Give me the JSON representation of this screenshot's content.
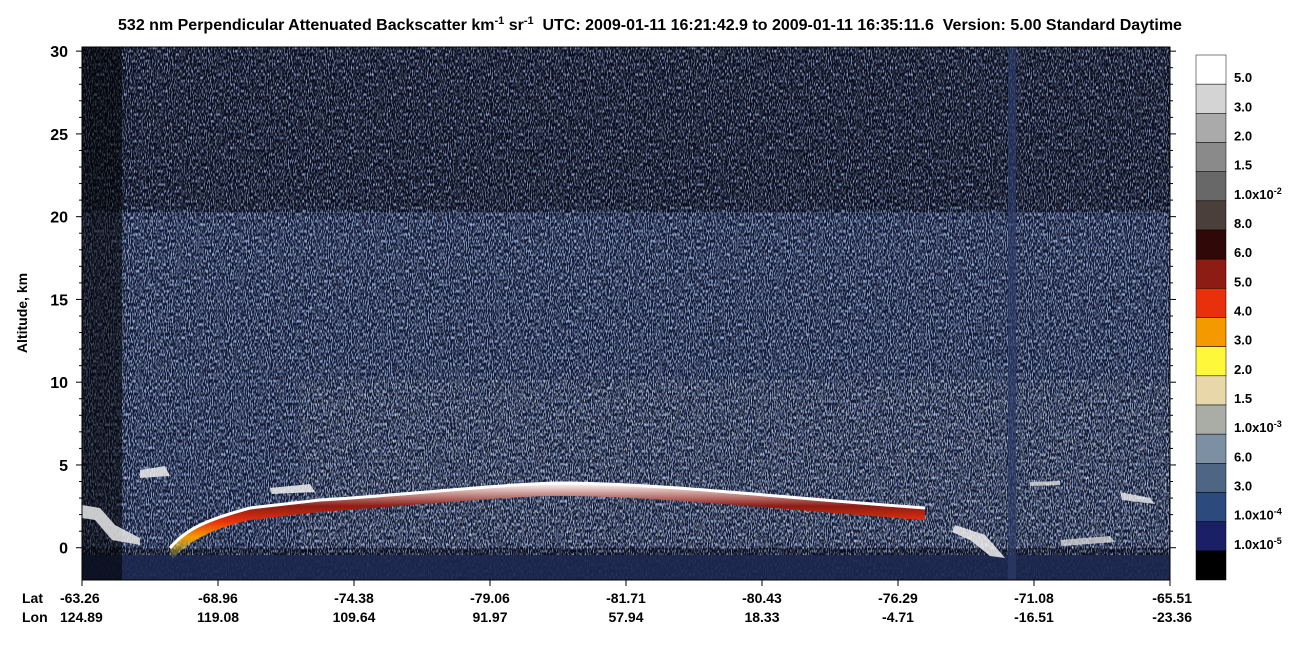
{
  "chart_data": {
    "type": "heatmap",
    "title": [
      {
        "text": "532 nm Perpendicular Attenuated Backscatter km"
      },
      {
        "sup": "-1"
      },
      {
        "text": " sr"
      },
      {
        "sup": "-1"
      },
      {
        "text": "  UTC: 2009-01-11 16:21:42.9 to 2009-01-11 16:35:11.6  Version: 5.00 Standard Daytime"
      }
    ],
    "y_label": "Altitude, km",
    "ylim": [
      -1.95,
      30.25
    ],
    "yticks": [
      0,
      5,
      10,
      15,
      20,
      25,
      30
    ],
    "x_rows": [
      {
        "name": "Lat",
        "values": [
          -63.26,
          -68.96,
          -74.38,
          -79.06,
          -81.71,
          -80.43,
          -76.29,
          -71.08,
          -65.51
        ]
      },
      {
        "name": "Lon",
        "values": [
          124.89,
          119.08,
          109.64,
          91.97,
          57.94,
          18.33,
          -4.71,
          -16.51,
          -23.36
        ]
      }
    ],
    "colorbar": {
      "colors": [
        "#ffffff",
        "#d4d4d4",
        "#aaaaaa",
        "#8a8a8a",
        "#686868",
        "#4a3f3a",
        "#300808",
        "#8c1c14",
        "#e8300c",
        "#f49a00",
        "#fdf83a",
        "#e8d7a8",
        "#a9ada5",
        "#7d8fa2",
        "#4e6584",
        "#2c4a7c",
        "#1b1f66",
        "#000000"
      ],
      "labels": [
        {
          "text": "5.0"
        },
        {
          "text": "3.0"
        },
        {
          "text": "2.0"
        },
        {
          "text": "1.5"
        },
        {
          "text": "1.0x10",
          "sup": "-2"
        },
        {
          "text": "8.0"
        },
        {
          "text": "6.0"
        },
        {
          "text": "5.0"
        },
        {
          "text": "4.0"
        },
        {
          "text": "3.0"
        },
        {
          "text": "2.0"
        },
        {
          "text": "1.5"
        },
        {
          "text": "1.0x10",
          "sup": "-3"
        },
        {
          "text": "6.0"
        },
        {
          "text": "3.0"
        },
        {
          "text": "1.0x10",
          "sup": "-4"
        },
        {
          "text": "1.0x10",
          "sup": "-5"
        }
      ]
    }
  }
}
